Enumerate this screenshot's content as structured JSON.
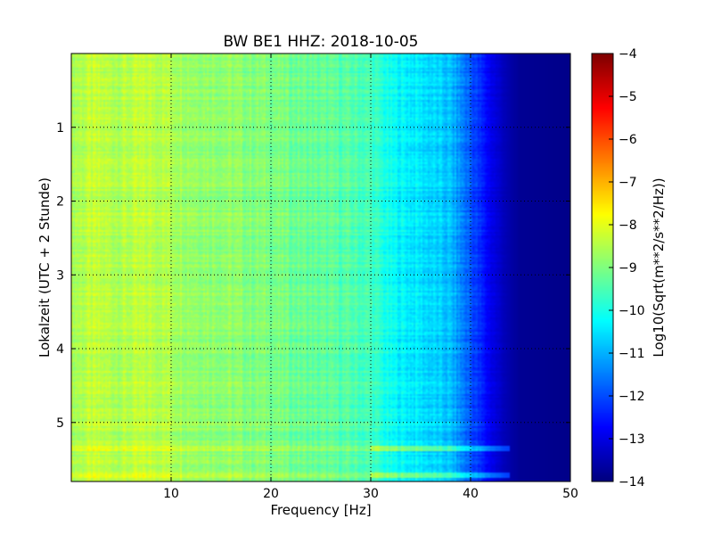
{
  "chart_data": {
    "type": "heatmap",
    "title": "BW BE1 HHZ: 2018-10-05",
    "xlabel": "Frequency [Hz]",
    "ylabel": "Lokalzeit (UTC + 2 Stunde)",
    "xlim": [
      0,
      50
    ],
    "ylim": [
      0,
      5.8
    ],
    "y_inverted": true,
    "x_ticks": [
      10,
      20,
      30,
      40,
      50
    ],
    "y_ticks": [
      1,
      2,
      3,
      4,
      5
    ],
    "grid": true,
    "colormap": "jet",
    "colorbar": {
      "label": "Log10(Sqrt(m**2/s**2/Hz))",
      "range": [
        -14,
        -4
      ],
      "ticks": [
        -4,
        -5,
        -6,
        -7,
        -8,
        -9,
        -10,
        -11,
        -12,
        -13,
        -14
      ]
    },
    "frequency_profile": {
      "freq_hz": [
        0,
        2,
        5,
        8,
        10,
        12,
        15,
        18,
        20,
        22,
        25,
        28,
        30,
        31,
        32,
        35,
        38,
        39,
        40,
        41,
        42,
        43,
        44,
        45,
        50
      ],
      "log10_asd": [
        -8.6,
        -8.4,
        -8.5,
        -8.4,
        -8.5,
        -8.7,
        -8.8,
        -8.95,
        -9.0,
        -9.15,
        -9.3,
        -9.45,
        -9.6,
        -9.9,
        -10.2,
        -10.5,
        -10.9,
        -11.4,
        -11.9,
        -12.4,
        -12.9,
        -13.3,
        -13.6,
        -13.8,
        -13.9
      ]
    },
    "bright_bands_hours": [
      5.35,
      5.72
    ]
  },
  "colors": {
    "jet_stops": [
      "#00007f",
      "#0000ff",
      "#007fff",
      "#00ffff",
      "#7fff7f",
      "#ffff00",
      "#ff7f00",
      "#ff0000",
      "#7f0000"
    ]
  }
}
